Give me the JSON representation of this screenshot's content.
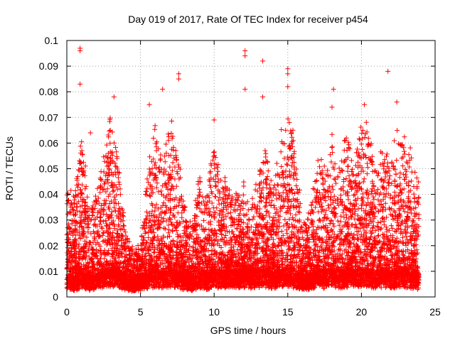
{
  "chart_data": {
    "type": "scatter",
    "title": "Day 019 of 2017, Rate Of TEC Index for receiver p454",
    "xlabel": "GPS time / hours",
    "ylabel": "ROTI / TECUs",
    "xlim": [
      0,
      25
    ],
    "ylim": [
      0,
      0.1
    ],
    "x_ticks": [
      0,
      5,
      10,
      15,
      20,
      25
    ],
    "x_tick_labels": [
      "0",
      "5",
      "10",
      "15",
      "20",
      "25"
    ],
    "y_ticks": [
      0,
      0.01,
      0.02,
      0.03,
      0.04,
      0.05,
      0.06,
      0.07,
      0.08,
      0.09,
      0.1
    ],
    "y_tick_labels": [
      "0",
      "0.01",
      "0.02",
      "0.03",
      "0.04",
      "0.05",
      "0.06",
      "0.07",
      "0.08",
      "0.09",
      "0.1"
    ],
    "grid": true,
    "marker": "plus",
    "series": [
      {
        "name": "p454",
        "color": "#ff0000",
        "x_range": [
          0,
          23.9
        ],
        "notable_points": [
          {
            "x": 0.9,
            "y": 0.097
          },
          {
            "x": 0.9,
            "y": 0.096
          },
          {
            "x": 0.9,
            "y": 0.083
          },
          {
            "x": 1.6,
            "y": 0.064
          },
          {
            "x": 3.2,
            "y": 0.078
          },
          {
            "x": 5.6,
            "y": 0.075
          },
          {
            "x": 6.5,
            "y": 0.081
          },
          {
            "x": 7.6,
            "y": 0.087
          },
          {
            "x": 7.6,
            "y": 0.085
          },
          {
            "x": 10.0,
            "y": 0.069
          },
          {
            "x": 12.1,
            "y": 0.096
          },
          {
            "x": 12.1,
            "y": 0.094
          },
          {
            "x": 12.1,
            "y": 0.081
          },
          {
            "x": 13.3,
            "y": 0.092
          },
          {
            "x": 13.3,
            "y": 0.078
          },
          {
            "x": 15.0,
            "y": 0.089
          },
          {
            "x": 15.0,
            "y": 0.087
          },
          {
            "x": 15.0,
            "y": 0.082
          },
          {
            "x": 18.1,
            "y": 0.081
          },
          {
            "x": 18.0,
            "y": 0.074
          },
          {
            "x": 20.2,
            "y": 0.075
          },
          {
            "x": 21.8,
            "y": 0.088
          },
          {
            "x": 22.4,
            "y": 0.076
          }
        ],
        "envelope": {
          "x": [
            0,
            0.5,
            1,
            1.5,
            2,
            2.5,
            3,
            3.5,
            4,
            4.5,
            5,
            5.5,
            6,
            6.5,
            7,
            7.5,
            8,
            8.5,
            9,
            9.5,
            10,
            10.5,
            11,
            11.5,
            12,
            12.5,
            13,
            13.5,
            14,
            14.5,
            15,
            15.5,
            16,
            16.5,
            17,
            17.5,
            18,
            18.5,
            19,
            19.5,
            20,
            20.5,
            21,
            21.5,
            22,
            22.5,
            23,
            23.5,
            23.9
          ],
          "y_typical_max": [
            0.045,
            0.04,
            0.068,
            0.035,
            0.04,
            0.06,
            0.072,
            0.055,
            0.025,
            0.02,
            0.02,
            0.05,
            0.068,
            0.055,
            0.07,
            0.06,
            0.035,
            0.03,
            0.05,
            0.04,
            0.065,
            0.05,
            0.045,
            0.04,
            0.045,
            0.035,
            0.05,
            0.06,
            0.045,
            0.065,
            0.075,
            0.06,
            0.03,
            0.035,
            0.06,
            0.05,
            0.065,
            0.055,
            0.068,
            0.05,
            0.07,
            0.065,
            0.055,
            0.06,
            0.055,
            0.07,
            0.06,
            0.055,
            0.045
          ],
          "y_baseline": [
            0.007,
            0.006,
            0.008,
            0.006,
            0.007,
            0.008,
            0.009,
            0.008,
            0.006,
            0.005,
            0.006,
            0.008,
            0.009,
            0.008,
            0.009,
            0.008,
            0.007,
            0.006,
            0.008,
            0.007,
            0.009,
            0.008,
            0.009,
            0.008,
            0.009,
            0.008,
            0.009,
            0.009,
            0.008,
            0.009,
            0.009,
            0.008,
            0.007,
            0.007,
            0.009,
            0.008,
            0.009,
            0.008,
            0.009,
            0.008,
            0.009,
            0.009,
            0.008,
            0.009,
            0.008,
            0.009,
            0.009,
            0.008,
            0.007
          ]
        },
        "point_count_estimate": 9000
      }
    ]
  }
}
